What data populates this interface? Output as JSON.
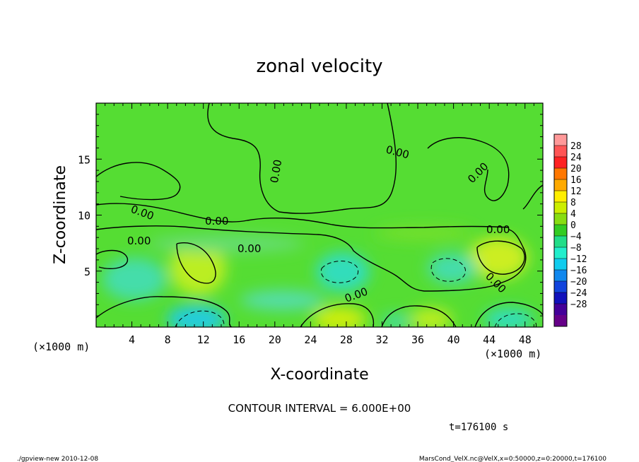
{
  "chart_data": {
    "type": "heatmap",
    "title": "zonal velocity",
    "xlabel": "X-coordinate",
    "ylabel": "Z-coordinate",
    "x_unit": "(×1000 m)",
    "y_unit": "(×1000 m)",
    "xlim": [
      0,
      50
    ],
    "ylim": [
      0,
      20
    ],
    "x_ticks": [
      "4",
      "8",
      "12",
      "16",
      "20",
      "24",
      "28",
      "32",
      "36",
      "40",
      "44",
      "48"
    ],
    "y_ticks": [
      "5",
      "10",
      "15"
    ],
    "colorbar_ticks": [
      "28",
      "24",
      "20",
      "16",
      "12",
      "8",
      "4",
      "0",
      "−4",
      "−8",
      "−12",
      "−16",
      "−20",
      "−24",
      "−28"
    ],
    "contour_labels": [
      "0.00",
      "0.00",
      "0.00",
      "0.00",
      "0.00",
      "0.00",
      "0.00",
      "0.00",
      "0.00",
      "0.00"
    ],
    "contour_interval_text": "CONTOUR INTERVAL = 6.000E+00",
    "time_text": "t=176100 s",
    "footer_left": "./gpview-new  2010-12-08",
    "footer_right": "MarsCond_VelX.nc@VelX,x=0:50000,z=0:20000,t=176100",
    "colors": {
      "background_field": "#55dd33",
      "positive": "#ccee22",
      "negative": "#33ddaa",
      "strong_negative": "#22ccdd"
    }
  }
}
